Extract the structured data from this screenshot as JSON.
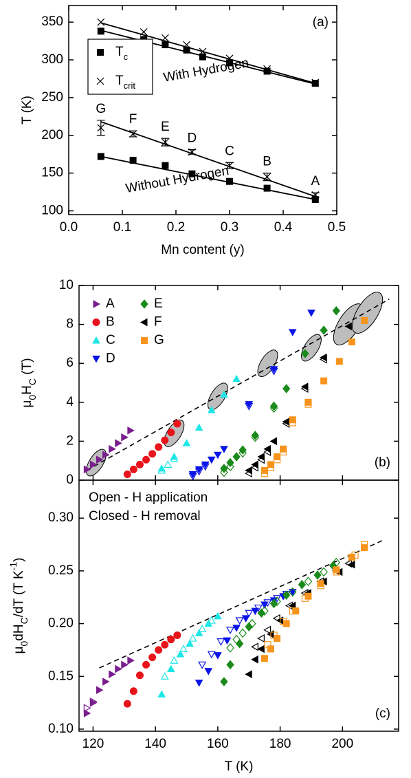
{
  "chart_data": [
    {
      "type": "scatter",
      "panel_label": "(a)",
      "xlabel": "Mn content (y)",
      "ylabel": "T (K)",
      "xlim": [
        0,
        0.5
      ],
      "ylim": [
        95,
        372
      ],
      "xticks": [
        {
          "value": 0,
          "label": "0.0"
        },
        0.1,
        0.2,
        0.3,
        0.4,
        0.5
      ],
      "yticks": [
        100,
        150,
        200,
        250,
        300,
        350
      ],
      "series": [
        {
          "name": "T",
          "subscript": "c",
          "marker": "square",
          "color": "#000000",
          "x": [
            0.06,
            0.14,
            0.18,
            0.22,
            0.25,
            0.3,
            0.37,
            0.46,
            0.06,
            0.12,
            0.18,
            0.23,
            0.3,
            0.37,
            0.46
          ],
          "y": [
            338,
            327,
            320,
            313,
            304,
            296,
            285,
            269,
            172,
            167,
            160,
            149,
            139,
            130,
            115
          ]
        },
        {
          "name": "T",
          "subscript": "crit",
          "marker": "cross",
          "color": "#000000",
          "x": [
            0.06,
            0.14,
            0.18,
            0.22,
            0.25,
            0.3,
            0.37,
            0.46,
            0.06,
            0.12,
            0.18,
            0.23,
            0.3,
            0.37,
            0.46
          ],
          "y": [
            350,
            337,
            329,
            320,
            311,
            302,
            288,
            270,
            210,
            202,
            191,
            178,
            160,
            145,
            121
          ],
          "errors": [
            null,
            null,
            null,
            null,
            null,
            null,
            null,
            null,
            10,
            4,
            5,
            3,
            4,
            5,
            3
          ],
          "point_labels": [
            null,
            null,
            null,
            null,
            null,
            null,
            null,
            null,
            "G",
            "F",
            "E",
            "D",
            "C",
            "B",
            "A"
          ]
        }
      ],
      "fits": [
        {
          "x": [
            0.06,
            0.46
          ],
          "y": [
            339,
            268
          ]
        },
        {
          "x": [
            0.06,
            0.46
          ],
          "y": [
            349,
            269
          ]
        },
        {
          "x": [
            0.06,
            0.46
          ],
          "y": [
            218,
            119
          ]
        },
        {
          "x": [
            0.06,
            0.46
          ],
          "y": [
            172,
            115
          ]
        }
      ],
      "annotations": [
        "With Hydrogen",
        "Without Hydrogen"
      ]
    },
    {
      "type": "scatter",
      "panel_label": "(b)",
      "ylabel": [
        {
          "text": "μ"
        },
        {
          "text": "0",
          "sub": true
        },
        {
          "text": "H"
        },
        {
          "text": "C",
          "sub": true
        },
        {
          "text": " (T)"
        }
      ],
      "xlim": [
        115.5,
        218
      ],
      "xticks": [
        120,
        140,
        160,
        180,
        200
      ],
      "ylim": [
        0,
        10
      ],
      "yticks": [
        0,
        2,
        4,
        6,
        8,
        10
      ],
      "series": [
        {
          "name": "A",
          "color": "#7b1f8f",
          "marker": "tri-right",
          "x": [
            118,
            120,
            122,
            124,
            126,
            128,
            130,
            132
          ],
          "y": [
            0.55,
            0.8,
            1.05,
            1.3,
            1.6,
            1.9,
            2.2,
            2.55
          ]
        },
        {
          "name": "B",
          "color": "#e8141b",
          "marker": "circle",
          "x": [
            131,
            133,
            135,
            137,
            139,
            141,
            143,
            145,
            147
          ],
          "y": [
            0.3,
            0.55,
            0.8,
            1.05,
            1.35,
            1.7,
            2.05,
            2.45,
            2.9
          ]
        },
        {
          "name": "C",
          "color": "#1ee6e6",
          "marker": "tri-up",
          "x": [
            142,
            146,
            150,
            154,
            158,
            162,
            166
          ],
          "y": [
            0.6,
            1.2,
            1.9,
            2.7,
            3.6,
            4.4,
            5.2
          ],
          "open_x": [
            142,
            144,
            146
          ],
          "open_y": [
            0.5,
            0.8,
            1.1
          ]
        },
        {
          "name": "D",
          "color": "#0a14e6",
          "marker": "tri-down",
          "x": [
            152,
            154,
            156,
            158,
            160,
            162,
            170,
            178,
            184,
            190
          ],
          "y": [
            0.3,
            0.55,
            0.8,
            1.05,
            1.3,
            1.6,
            3.9,
            5.7,
            7.6,
            8.6
          ],
          "open_x": [
            152,
            154,
            156,
            170,
            178
          ],
          "open_y": [
            0.2,
            0.45,
            0.7,
            3.8,
            5.6
          ]
        },
        {
          "name": "E",
          "color": "#1a8a1a",
          "marker": "diamond",
          "x": [
            162,
            164,
            166,
            168,
            172,
            178,
            182,
            188,
            194,
            198
          ],
          "y": [
            0.6,
            0.9,
            1.2,
            1.55,
            2.3,
            3.8,
            4.7,
            6.5,
            7.7,
            8.7
          ],
          "open_x": [
            162,
            164,
            168,
            172,
            178
          ],
          "open_y": [
            0.4,
            0.7,
            1.4,
            2.2,
            3.7
          ]
        },
        {
          "name": "F",
          "color": "#000000",
          "marker": "tri-left",
          "x": [
            170,
            172,
            174,
            176,
            178,
            182,
            188,
            194,
            202
          ],
          "y": [
            0.5,
            0.8,
            1.2,
            1.6,
            2.0,
            3.0,
            4.8,
            6.3,
            7.9
          ],
          "open_x": [
            170,
            172,
            174,
            176,
            182,
            188,
            194
          ],
          "open_y": [
            0.35,
            0.65,
            1.05,
            1.45,
            2.9,
            4.7,
            6.2
          ]
        },
        {
          "name": "G",
          "color": "#f7941d",
          "marker": "square",
          "x": [
            175,
            177,
            179,
            181,
            184,
            189,
            194,
            199,
            203,
            207
          ],
          "y": [
            0.5,
            0.8,
            1.2,
            1.6,
            3.1,
            4.0,
            5.1,
            6.1,
            7.1,
            8.2
          ],
          "open_x": [
            175,
            177,
            179,
            181,
            184,
            189
          ],
          "open_y": [
            0.35,
            0.65,
            1.05,
            1.45,
            2.95,
            3.9
          ]
        }
      ],
      "fit": {
        "x": [
          118,
          215
        ],
        "y": [
          0.5,
          9.3
        ]
      },
      "crossovers": {
        "x": [
          121,
          146,
          160,
          176,
          190,
          202,
          208
        ],
        "y": [
          0.9,
          2.4,
          4.3,
          6.0,
          6.8,
          8.0,
          8.6
        ]
      }
    },
    {
      "type": "scatter",
      "panel_label": "(c)",
      "xlabel": "T (K)",
      "ylabel": [
        {
          "text": "μ"
        },
        {
          "text": "0",
          "sub": true
        },
        {
          "text": "dH"
        },
        {
          "text": "C",
          "sub": true
        },
        {
          "text": "/dT (T K"
        },
        {
          "text": "-1",
          "sup": true
        },
        {
          "text": ")"
        }
      ],
      "notes": [
        "Open - H application",
        "Closed - H removal"
      ],
      "xlim": [
        115.5,
        218
      ],
      "xticks": [
        120,
        140,
        160,
        180,
        200
      ],
      "ylim": [
        0.098,
        0.336
      ],
      "yticks": [
        {
          "value": 0.1,
          "label": "0.10"
        },
        0.15,
        {
          "value": 0.2,
          "label": "0.20"
        },
        0.25,
        {
          "value": 0.3,
          "label": "0.30"
        }
      ],
      "series": [
        {
          "color": "#7b1f8f",
          "marker": "tri-right",
          "x": [
            118,
            120,
            122,
            124,
            126,
            128,
            130,
            132
          ],
          "y": [
            0.115,
            0.125,
            0.137,
            0.145,
            0.152,
            0.157,
            0.161,
            0.165
          ],
          "open_x": [
            118,
            120
          ],
          "open_y": [
            0.12,
            0.126
          ]
        },
        {
          "color": "#e8141b",
          "marker": "circle",
          "x": [
            131,
            133,
            135,
            137,
            139,
            141,
            143,
            145,
            147
          ],
          "y": [
            0.124,
            0.136,
            0.151,
            0.161,
            0.168,
            0.175,
            0.18,
            0.185,
            0.189
          ]
        },
        {
          "color": "#1ee6e6",
          "marker": "tri-up",
          "x": [
            142,
            145,
            148,
            151,
            154,
            157,
            160
          ],
          "y": [
            0.133,
            0.157,
            0.171,
            0.181,
            0.191,
            0.2,
            0.207
          ],
          "open_x": [
            143,
            146,
            149,
            152,
            155,
            158
          ],
          "open_y": [
            0.15,
            0.165,
            0.176,
            0.186,
            0.195,
            0.203
          ]
        },
        {
          "color": "#0a14e6",
          "marker": "tri-down",
          "x": [
            154,
            157,
            160,
            163,
            166,
            169,
            172,
            175,
            178,
            181,
            184
          ],
          "y": [
            0.144,
            0.155,
            0.17,
            0.184,
            0.196,
            0.205,
            0.212,
            0.218,
            0.222,
            0.226,
            0.23
          ],
          "open_x": [
            155,
            158,
            161,
            164,
            167,
            170,
            173,
            176,
            179,
            182
          ],
          "open_y": [
            0.161,
            0.171,
            0.183,
            0.194,
            0.203,
            0.21,
            0.215,
            0.22,
            0.224,
            0.228
          ]
        },
        {
          "color": "#1a8a1a",
          "marker": "diamond",
          "x": [
            162,
            164,
            167,
            170,
            174,
            178,
            182,
            187,
            192,
            197
          ],
          "y": [
            0.145,
            0.161,
            0.181,
            0.197,
            0.21,
            0.219,
            0.227,
            0.237,
            0.246,
            0.255
          ],
          "open_x": [
            164,
            166,
            168,
            171,
            175,
            179,
            184,
            189,
            194,
            198
          ],
          "open_y": [
            0.177,
            0.185,
            0.191,
            0.2,
            0.212,
            0.221,
            0.23,
            0.24,
            0.249,
            0.258
          ]
        },
        {
          "color": "#000000",
          "marker": "tri-left",
          "x": [
            170,
            172,
            174,
            177,
            180,
            184,
            189,
            194,
            199,
            203
          ],
          "y": [
            0.152,
            0.166,
            0.176,
            0.19,
            0.203,
            0.217,
            0.229,
            0.24,
            0.249,
            0.256
          ],
          "open_x": [
            172,
            174,
            176,
            179,
            183,
            188,
            193,
            198,
            202
          ],
          "open_y": [
            0.178,
            0.186,
            0.194,
            0.205,
            0.217,
            0.229,
            0.24,
            0.25,
            0.257
          ]
        },
        {
          "color": "#f7941d",
          "marker": "square",
          "x": [
            175,
            177,
            179,
            182,
            185,
            189,
            193,
            198,
            203,
            207
          ],
          "y": [
            0.167,
            0.176,
            0.186,
            0.2,
            0.212,
            0.226,
            0.238,
            0.251,
            0.263,
            0.272
          ],
          "open_x": [
            176,
            178,
            181,
            184,
            188,
            193,
            198,
            204,
            207
          ],
          "open_y": [
            0.18,
            0.189,
            0.202,
            0.212,
            0.224,
            0.236,
            0.249,
            0.265,
            0.275
          ]
        }
      ],
      "fit": {
        "x": [
          122,
          213
        ],
        "y": [
          0.158,
          0.279
        ]
      }
    }
  ]
}
